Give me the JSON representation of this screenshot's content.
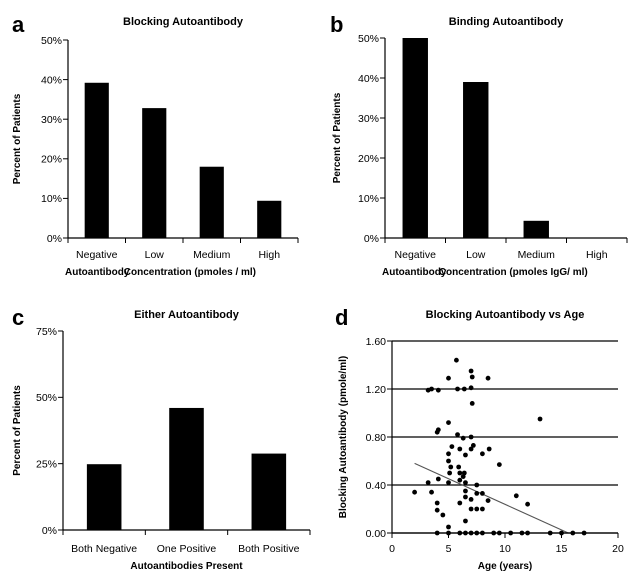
{
  "chart_data": [
    {
      "panel": "a",
      "type": "bar",
      "title": "Blocking Autoantibody",
      "ylabel": "Percent of Patients",
      "xlabel_parts": [
        "Autoantibody",
        "Concentration (pmoles / ml)"
      ],
      "categories": [
        "Negative",
        "Low",
        "Medium",
        "High"
      ],
      "values": [
        39.2,
        32.8,
        18.0,
        9.4
      ],
      "ylim": [
        0,
        50
      ],
      "yticks": [
        0,
        10,
        20,
        30,
        40,
        50
      ],
      "ytick_labels": [
        "0%",
        "10%",
        "20%",
        "30%",
        "40%",
        "50%"
      ],
      "color": "#000000"
    },
    {
      "panel": "b",
      "type": "bar",
      "title": "Binding Autoantibody",
      "ylabel": "Percent of Patients",
      "xlabel_parts": [
        "Autoantibody",
        "Concentration (pmoles IgG/ ml)"
      ],
      "categories": [
        "Negative",
        "Low",
        "Medium",
        "High"
      ],
      "values": [
        50.0,
        39.0,
        4.3,
        0
      ],
      "ylim": [
        0,
        50
      ],
      "yticks": [
        0,
        10,
        20,
        30,
        40,
        50
      ],
      "ytick_labels": [
        "0%",
        "10%",
        "20%",
        "30%",
        "40%",
        "50%"
      ],
      "color": "#000000"
    },
    {
      "panel": "c",
      "type": "bar",
      "title": "Either Autoantibody",
      "ylabel": "Percent of Patients",
      "xlabel": "Autoantibodies Present",
      "categories": [
        "Both Negative",
        "One Positive",
        "Both Positive"
      ],
      "values": [
        24.8,
        46.0,
        28.8
      ],
      "ylim": [
        0,
        75
      ],
      "yticks": [
        0,
        25,
        50,
        75
      ],
      "ytick_labels": [
        "0%",
        "25%",
        "50%",
        "75%"
      ],
      "color": "#000000"
    },
    {
      "panel": "d",
      "type": "scatter",
      "title": "Blocking Autoantibody vs Age",
      "ylabel": "Blocking Autoantibody (pmole/ml)",
      "xlabel": "Age (years)",
      "xlim": [
        0,
        20
      ],
      "ylim": [
        0,
        1.6
      ],
      "xticks": [
        0,
        5,
        10,
        15,
        20
      ],
      "xtick_labels": [
        "0",
        "5",
        "10",
        "15",
        "20"
      ],
      "yticks": [
        0,
        0.4,
        0.8,
        1.2,
        1.6
      ],
      "ytick_labels": [
        "0.00",
        "0.40",
        "0.80",
        "1.20",
        "1.60"
      ],
      "grid": "horizontal",
      "trendline": {
        "x": [
          2,
          15.6
        ],
        "y": [
          0.58,
          0.0
        ]
      },
      "points": [
        [
          5.7,
          1.44
        ],
        [
          7.0,
          1.35
        ],
        [
          7.1,
          1.3
        ],
        [
          5.0,
          1.29
        ],
        [
          8.5,
          1.29
        ],
        [
          3.2,
          1.19
        ],
        [
          3.5,
          1.2
        ],
        [
          4.1,
          1.19
        ],
        [
          5.8,
          1.2
        ],
        [
          6.4,
          1.2
        ],
        [
          7.0,
          1.21
        ],
        [
          7.1,
          1.08
        ],
        [
          4.0,
          0.84
        ],
        [
          4.1,
          0.86
        ],
        [
          5.0,
          0.92
        ],
        [
          13.1,
          0.95
        ],
        [
          5.8,
          0.82
        ],
        [
          6.3,
          0.79
        ],
        [
          7.0,
          0.8
        ],
        [
          5.3,
          0.72
        ],
        [
          6.0,
          0.7
        ],
        [
          6.5,
          0.65
        ],
        [
          7.0,
          0.7
        ],
        [
          7.2,
          0.73
        ],
        [
          8.0,
          0.66
        ],
        [
          8.6,
          0.7
        ],
        [
          9.5,
          0.57
        ],
        [
          5.0,
          0.66
        ],
        [
          5.0,
          0.6
        ],
        [
          5.2,
          0.55
        ],
        [
          5.1,
          0.5
        ],
        [
          5.9,
          0.55
        ],
        [
          6.0,
          0.5
        ],
        [
          6.4,
          0.5
        ],
        [
          6.3,
          0.47
        ],
        [
          6.0,
          0.44
        ],
        [
          5.0,
          0.42
        ],
        [
          6.5,
          0.42
        ],
        [
          7.5,
          0.4
        ],
        [
          4.1,
          0.45
        ],
        [
          3.2,
          0.42
        ],
        [
          3.5,
          0.34
        ],
        [
          2.0,
          0.34
        ],
        [
          6.5,
          0.35
        ],
        [
          7.5,
          0.33
        ],
        [
          8.0,
          0.33
        ],
        [
          6.5,
          0.3
        ],
        [
          7.0,
          0.28
        ],
        [
          8.5,
          0.27
        ],
        [
          11.0,
          0.31
        ],
        [
          4.0,
          0.25
        ],
        [
          6.0,
          0.25
        ],
        [
          7.0,
          0.2
        ],
        [
          7.5,
          0.2
        ],
        [
          8.0,
          0.2
        ],
        [
          12.0,
          0.24
        ],
        [
          4.0,
          0.19
        ],
        [
          4.5,
          0.15
        ],
        [
          6.5,
          0.1
        ],
        [
          5.0,
          0.05
        ],
        [
          4.0,
          0
        ],
        [
          5.0,
          0
        ],
        [
          6.0,
          0
        ],
        [
          6.5,
          0
        ],
        [
          7.0,
          0
        ],
        [
          7.5,
          0
        ],
        [
          8.0,
          0
        ],
        [
          9.0,
          0
        ],
        [
          9.5,
          0
        ],
        [
          10.5,
          0
        ],
        [
          11.5,
          0
        ],
        [
          12.0,
          0
        ],
        [
          14.0,
          0
        ],
        [
          15.0,
          0
        ],
        [
          16.0,
          0
        ],
        [
          17.0,
          0
        ]
      ]
    }
  ]
}
